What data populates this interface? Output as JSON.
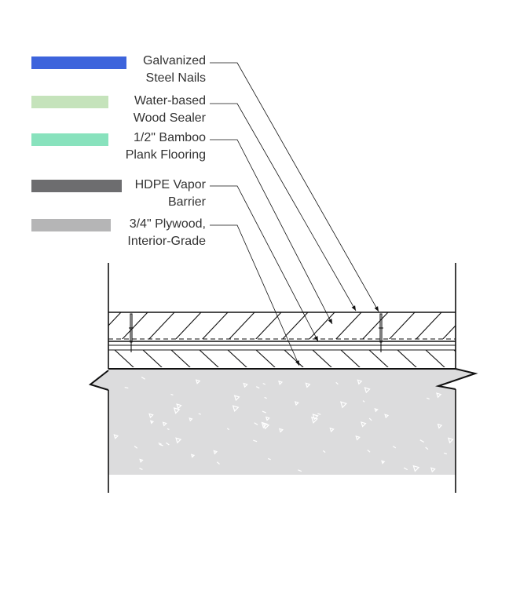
{
  "legend": [
    {
      "line1": "Galvanized",
      "line2": "Steel Nails",
      "color": "#3d64dc"
    },
    {
      "line1": "Water-based",
      "line2": "Wood Sealer",
      "color": "#c5e3bb"
    },
    {
      "line1": "1/2\" Bamboo",
      "line2": "Plank Flooring",
      "color": "#88e2bd"
    },
    {
      "line1": "HDPE Vapor",
      "line2": "Barrier",
      "color": "#6d6d6f"
    },
    {
      "line1": "3/4\" Plywood,",
      "line2": "Interior-Grade",
      "color": "#b5b5b6"
    }
  ],
  "colors": {
    "line": "#111111",
    "leader": "#555555",
    "concrete": "#dcdcdd"
  }
}
